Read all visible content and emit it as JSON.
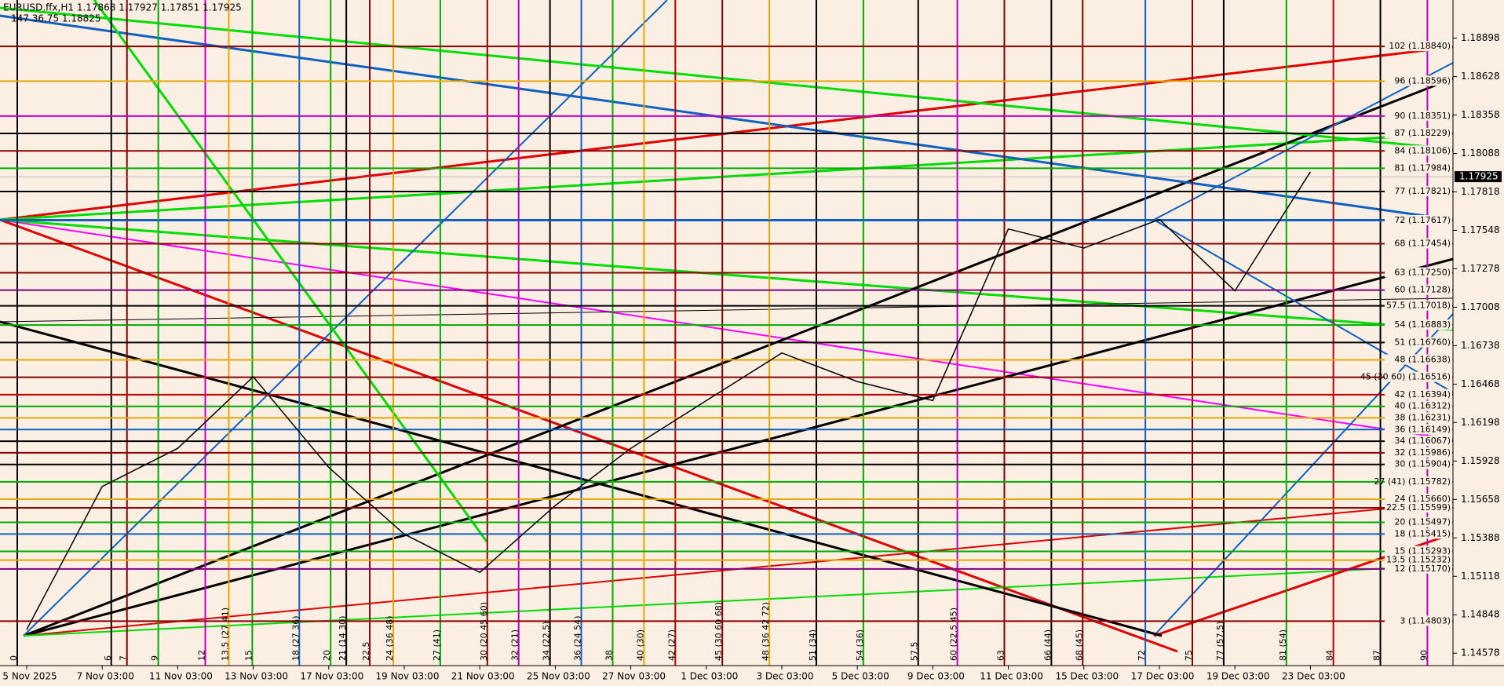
{
  "chart_data": {
    "type": "line",
    "header": {
      "line1": "EURUSD.ffx,H1  1.17868 1.17927 1.17851 1.17925",
      "line2": "147  36.75  1.18825"
    },
    "categories": [
      "5 Nov 2025",
      "7 Nov 03:00",
      "11 Nov 03:00",
      "13 Nov 03:00",
      "17 Nov 03:00",
      "19 Nov 03:00",
      "21 Nov 03:00",
      "25 Nov 03:00",
      "27 Nov 03:00",
      "1 Dec 03:00",
      "3 Dec 03:00",
      "5 Dec 03:00",
      "9 Dec 03:00",
      "11 Dec 03:00",
      "15 Dec 03:00",
      "17 Dec 03:00",
      "19 Dec 03:00",
      "23 Dec 03:00"
    ],
    "series": [
      {
        "name": "EURUSD.ffx,H1",
        "color": "#000000",
        "values": [
          1.14744,
          1.15749,
          1.16017,
          1.1652,
          1.15883,
          1.15414,
          1.15146,
          1.15615,
          1.16017,
          1.16352,
          1.16687,
          1.16486,
          1.16352,
          1.17558,
          1.17424,
          1.17625,
          1.17123,
          1.1796
        ]
      }
    ],
    "last_price": 1.17925,
    "ylim": [
      1.14491,
      1.19166
    ],
    "yticks": [
      1.14578,
      1.14848,
      1.15118,
      1.15388,
      1.15658,
      1.15928,
      1.16198,
      1.16468,
      1.16738,
      1.17008,
      1.17278,
      1.17548,
      1.17818,
      1.18088,
      1.18358,
      1.18628,
      1.18898
    ],
    "levels": [
      {
        "label": "102 (1.18840)",
        "price": 1.1884,
        "color": "#8b0000"
      },
      {
        "label": "96 (1.18596)",
        "price": 1.18596,
        "color": "#e6a800"
      },
      {
        "label": "90 (1.18351)",
        "price": 1.18351,
        "color": "#c000c0"
      },
      {
        "label": "87 (1.18229)",
        "price": 1.18229,
        "color": "#000000"
      },
      {
        "label": "84 (1.18106)",
        "price": 1.18106,
        "color": "#8b0000"
      },
      {
        "label": "81 (1.17984)",
        "price": 1.17984,
        "color": "#00aa00"
      },
      {
        "label": "77 (1.17821)",
        "price": 1.17821,
        "color": "#000000"
      },
      {
        "label": "72 (1.17617)",
        "price": 1.17617,
        "color": "#1060c0"
      },
      {
        "label": "68 (1.17454)",
        "price": 1.17454,
        "color": "#8b0000"
      },
      {
        "label": "63 (1.17250)",
        "price": 1.1725,
        "color": "#8b0000"
      },
      {
        "label": "60 (1.17128)",
        "price": 1.17128,
        "color": "#800080"
      },
      {
        "label": "57.5 (1.17018)",
        "price": 1.17018,
        "color": "#000000"
      },
      {
        "label": "54 (1.16883)",
        "price": 1.16883,
        "color": "#00aa00"
      },
      {
        "label": "51 (1.16760)",
        "price": 1.1676,
        "color": "#000000"
      },
      {
        "label": "48 (1.16638)",
        "price": 1.16638,
        "color": "#e6a800"
      },
      {
        "label": "45 (30 60) (1.16516)",
        "price": 1.16516,
        "color": "#8b0000"
      },
      {
        "label": "42 (1.16394)",
        "price": 1.16394,
        "color": "#c00000"
      },
      {
        "label": "40 (1.16312)",
        "price": 1.16312,
        "color": "#00aa00"
      },
      {
        "label": "38 (1.16231)",
        "price": 1.16231,
        "color": "#e6a800"
      },
      {
        "label": "36 (1.16149)",
        "price": 1.16149,
        "color": "#1060c0"
      },
      {
        "label": "34 (1.16067)",
        "price": 1.16067,
        "color": "#000000"
      },
      {
        "label": "32 (1.15986)",
        "price": 1.15986,
        "color": "#8b0000"
      },
      {
        "label": "30 (1.15904)",
        "price": 1.15904,
        "color": "#000000"
      },
      {
        "label": "27 (41) (1.15782)",
        "price": 1.15782,
        "color": "#00aa00"
      },
      {
        "label": "24 (1.15660)",
        "price": 1.1566,
        "color": "#e6a800"
      },
      {
        "label": "22.5 (1.15599)",
        "price": 1.15599,
        "color": "#8b0000"
      },
      {
        "label": "20 (1.15497)",
        "price": 1.15497,
        "color": "#00aa00"
      },
      {
        "label": "18 (1.15415)",
        "price": 1.15415,
        "color": "#1060c0"
      },
      {
        "label": "15 (1.15293)",
        "price": 1.15293,
        "color": "#00aa00"
      },
      {
        "label": "13.5 (1.15232)",
        "price": 1.15232,
        "color": "#e6a800"
      },
      {
        "label": "12 (1.15170)",
        "price": 1.1517,
        "color": "#800080"
      },
      {
        "label": "3 (1.14803)",
        "price": 1.14803,
        "color": "#8b0000"
      }
    ],
    "time_levels": [
      {
        "value": 0,
        "label": "0",
        "color": "#000000"
      },
      {
        "value": 6,
        "label": "6",
        "color": "#000000"
      },
      {
        "value": 7,
        "label": "7",
        "color": "#8b0000"
      },
      {
        "value": 9,
        "label": "9",
        "color": "#00aa00"
      },
      {
        "value": 12,
        "label": "12",
        "color": "#c000c0"
      },
      {
        "value": 13.5,
        "label": "13.5 (27 41)",
        "color": "#e6a800"
      },
      {
        "value": 15,
        "label": "15",
        "color": "#00aa00"
      },
      {
        "value": 18,
        "label": "18 (27 36)",
        "color": "#1060c0"
      },
      {
        "value": 20,
        "label": "20",
        "color": "#00aa00"
      },
      {
        "value": 21,
        "label": "21 (14 30)",
        "color": "#000000"
      },
      {
        "value": 22.5,
        "label": "22.5",
        "color": "#8b0000"
      },
      {
        "value": 24,
        "label": "24 (36 48)",
        "color": "#e6a800"
      },
      {
        "value": 27,
        "label": "27 (41)",
        "color": "#00aa00"
      },
      {
        "value": 30,
        "label": "30 (20 45 60)",
        "color": "#8b0000"
      },
      {
        "value": 32,
        "label": "32 (21)",
        "color": "#c000c0"
      },
      {
        "value": 34,
        "label": "34 (22.5)",
        "color": "#000000"
      },
      {
        "value": 36,
        "label": "36 (24 54)",
        "color": "#1060c0"
      },
      {
        "value": 38,
        "label": "38",
        "color": "#00aa00"
      },
      {
        "value": 40,
        "label": "40 (30)",
        "color": "#e6a800"
      },
      {
        "value": 42,
        "label": "42 (27)",
        "color": "#c00000"
      },
      {
        "value": 45,
        "label": "45 (30 60 68)",
        "color": "#8b0000"
      },
      {
        "value": 48,
        "label": "48 (36 42 72)",
        "color": "#e6a800"
      },
      {
        "value": 51,
        "label": "51 (34)",
        "color": "#000000"
      },
      {
        "value": 54,
        "label": "54 (36)",
        "color": "#00aa00"
      },
      {
        "value": 57.5,
        "label": "57.5",
        "color": "#000000"
      },
      {
        "value": 60,
        "label": "60 (22.5 45)",
        "color": "#c000c0"
      },
      {
        "value": 63,
        "label": "63",
        "color": "#8b0000"
      },
      {
        "value": 66,
        "label": "66 (44)",
        "color": "#000000"
      },
      {
        "value": 68,
        "label": "68 (45)",
        "color": "#8b0000"
      },
      {
        "value": 72,
        "label": "72",
        "color": "#1060c0"
      },
      {
        "value": 75,
        "label": "75",
        "color": "#8b0000"
      },
      {
        "value": 77,
        "label": "77 (57.5)",
        "color": "#000000"
      },
      {
        "value": 81,
        "label": "81 (54)",
        "color": "#00aa00"
      },
      {
        "value": 84,
        "label": "84",
        "color": "#c00000"
      },
      {
        "value": 87,
        "label": "87",
        "color": "#000000"
      },
      {
        "value": 90,
        "label": "90",
        "color": "#c000c0"
      }
    ]
  }
}
